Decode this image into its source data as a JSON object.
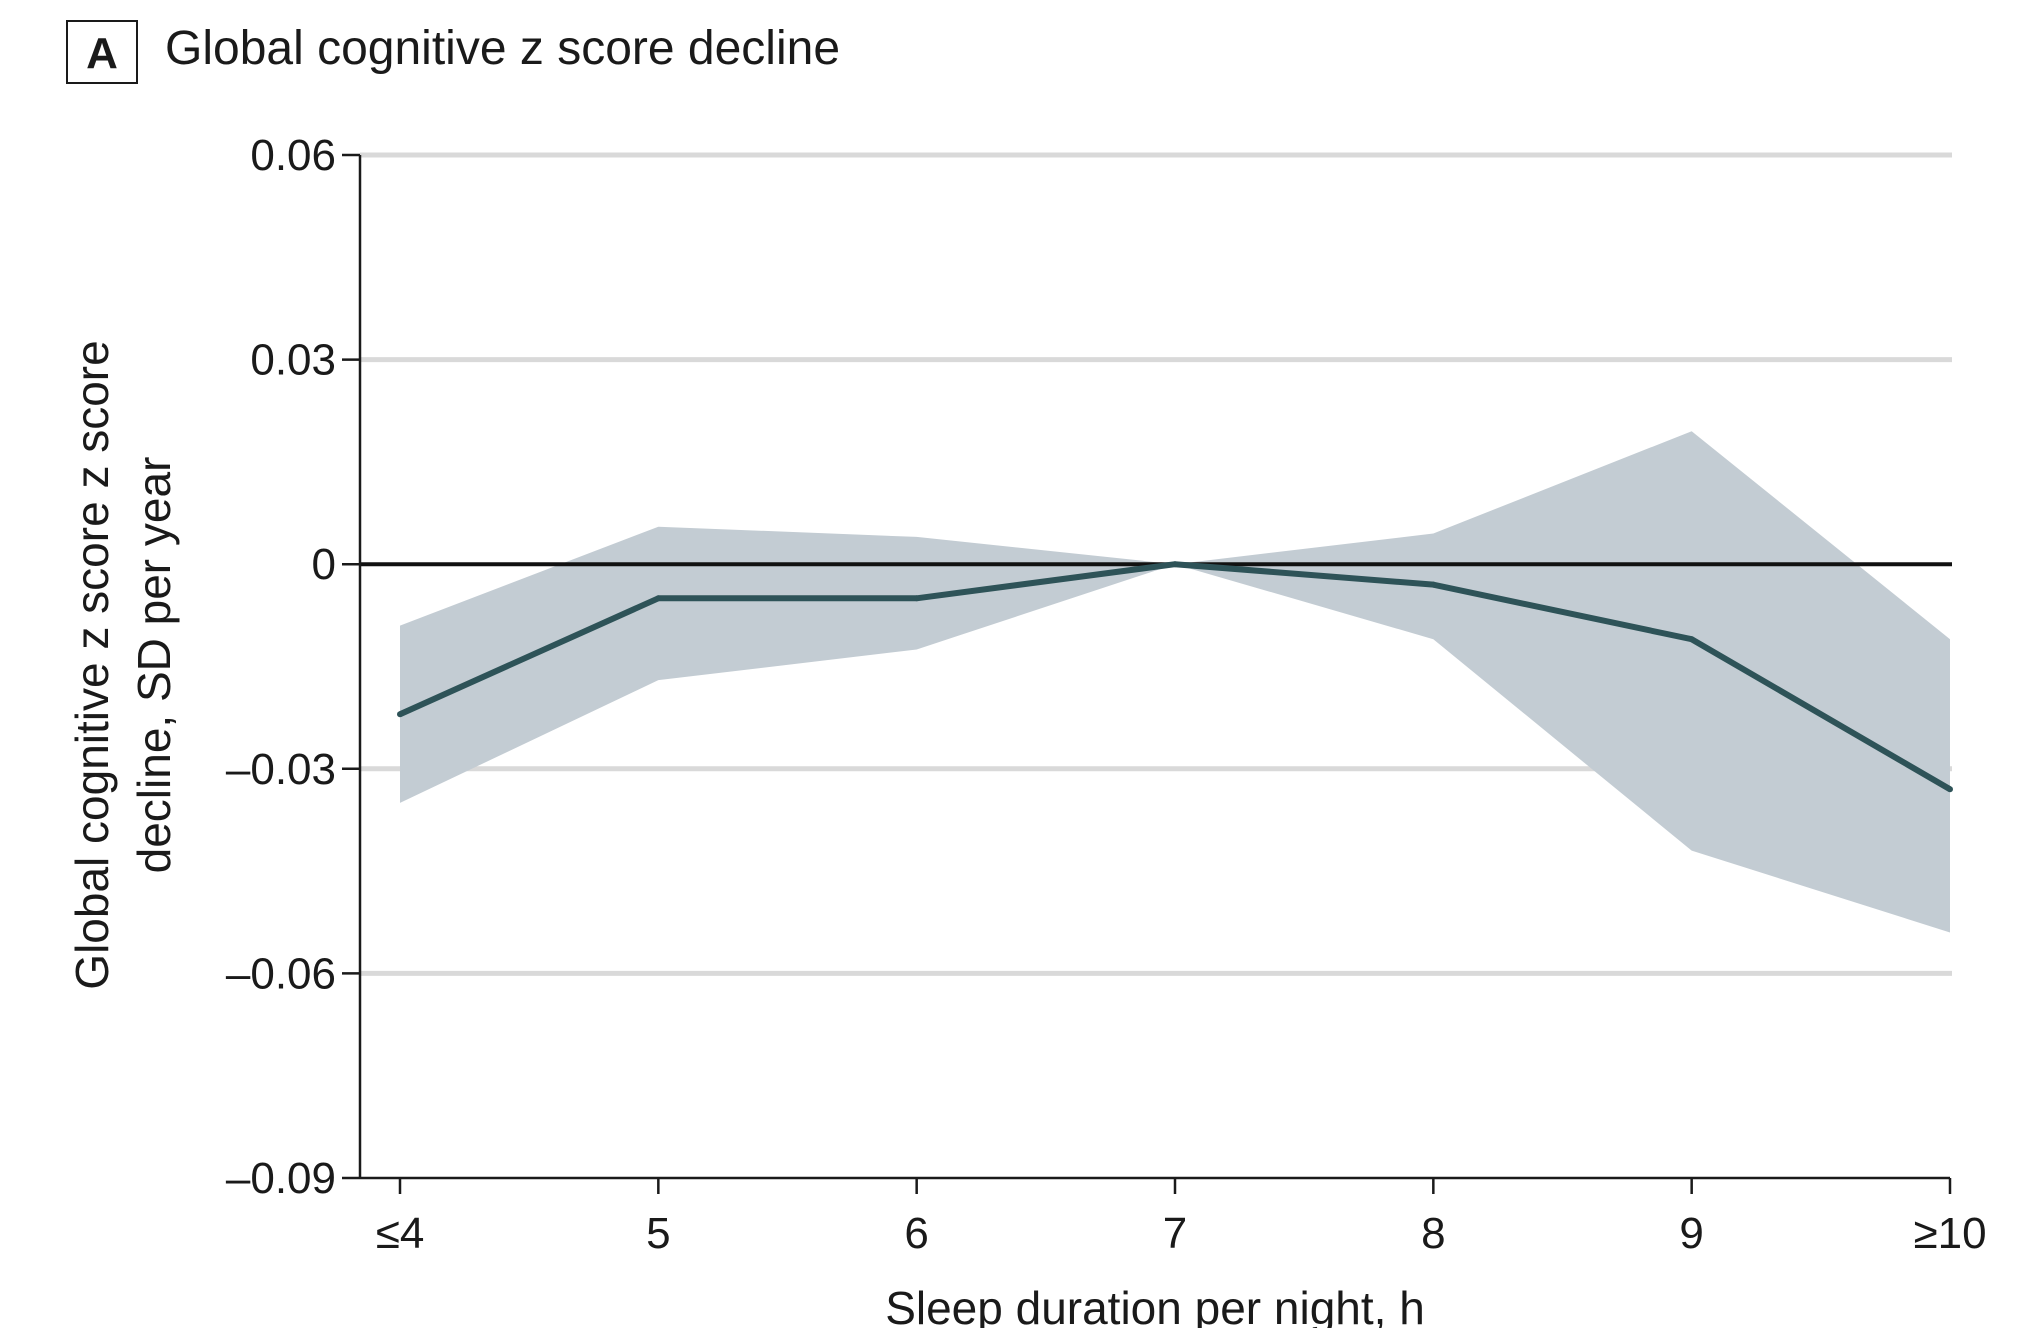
{
  "panel": {
    "letter": "A",
    "title": "Global cognitive z score decline"
  },
  "colors": {
    "line": "#2e5358",
    "band": "#c3ccd3",
    "grid": "#d9d9d9",
    "zero": "#111111"
  },
  "chart_data": {
    "type": "line",
    "title": "Global cognitive z score decline",
    "xlabel": "Sleep duration per night, h",
    "ylabel_line1": "Global cognitive z score z score",
    "ylabel_line2": "decline, SD per year",
    "categories": [
      "≤4",
      "5",
      "6",
      "7",
      "8",
      "9",
      "≥10"
    ],
    "ylim": [
      -0.09,
      0.06
    ],
    "yticks": [
      0.06,
      0.03,
      0,
      -0.03,
      -0.06,
      -0.09
    ],
    "ytick_labels": [
      "0.06",
      "0.03",
      "0",
      "–0.03",
      "–0.06",
      "–0.09"
    ],
    "grid": true,
    "series": [
      {
        "values": [
          -0.022,
          -0.005,
          -0.005,
          0,
          -0.003,
          -0.011,
          -0.033
        ]
      }
    ],
    "ci_upper": [
      -0.009,
      0.0055,
      0.004,
      0,
      0.0045,
      0.0195,
      -0.011
    ],
    "ci_lower": [
      -0.035,
      -0.017,
      -0.0125,
      0,
      -0.011,
      -0.042,
      -0.054
    ]
  }
}
